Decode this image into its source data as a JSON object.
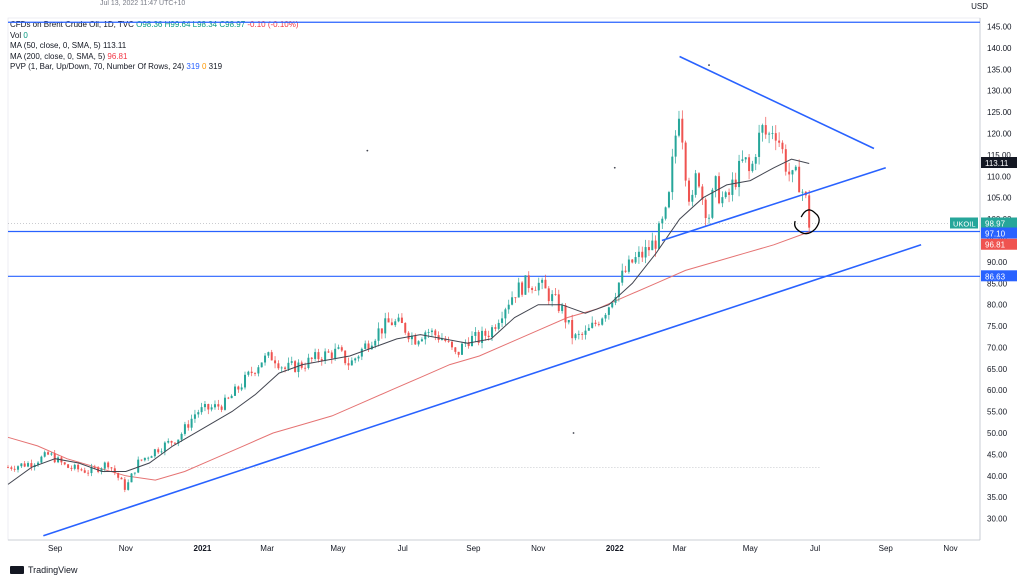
{
  "header": {
    "partial_top": "Jul 13, 2022 11:47 UTC+10",
    "currency": "USD"
  },
  "legend": {
    "symbol": "CFDs on Brent Crude Oil, 1D, TVC",
    "open": "O98.36",
    "high": "H99.64",
    "low": "L98.34",
    "close": "C98.97",
    "change": "-0.10 (-0.10%)",
    "vol_label": "Vol",
    "vol_value": "0",
    "ma50_label": "MA (50, close, 0, SMA, 5)",
    "ma50_value": "113.11",
    "ma200_label": "MA (200, close, 0, SMA, 5)",
    "ma200_value": "96.81",
    "pvp_label": "PVP (1, Bar, Up/Down, 70, Number Of Rows, 24)",
    "pvp_v1": "319",
    "pvp_v2": "0",
    "pvp_v3": "319"
  },
  "brand": {
    "name": "TradingView"
  },
  "colors": {
    "up": "#26a69a",
    "down": "#ef5350",
    "trend": "#2962ff",
    "ma50": "#434651",
    "ma200": "#e57373",
    "annotation": "#000000"
  },
  "chart_data": {
    "type": "candlestick",
    "y_range": [
      25,
      147
    ],
    "y_ticks": [
      30,
      35,
      40,
      45,
      50,
      55,
      60,
      65,
      70,
      75,
      80,
      85,
      90,
      95,
      100,
      105,
      110,
      115,
      120,
      125,
      130,
      135,
      140,
      145
    ],
    "x_labels": [
      {
        "label": "Sep",
        "t": 0.08
      },
      {
        "label": "Nov",
        "t": 0.2
      },
      {
        "label": "2021",
        "t": 0.33
      },
      {
        "label": "Mar",
        "t": 0.44
      },
      {
        "label": "May",
        "t": 0.56
      },
      {
        "label": "Jul",
        "t": 0.67
      },
      {
        "label": "Sep",
        "t": 0.79
      },
      {
        "label": "Nov",
        "t": 0.9
      },
      {
        "label": "2022",
        "t": 1.03
      },
      {
        "label": "Mar",
        "t": 1.14
      },
      {
        "label": "May",
        "t": 1.26
      },
      {
        "label": "Jul",
        "t": 1.37
      },
      {
        "label": "Sep",
        "t": 1.49
      },
      {
        "label": "Nov",
        "t": 1.6
      }
    ],
    "price_path": [
      [
        0.0,
        42
      ],
      [
        0.04,
        43
      ],
      [
        0.07,
        45
      ],
      [
        0.1,
        42
      ],
      [
        0.14,
        41
      ],
      [
        0.17,
        43
      ],
      [
        0.2,
        37
      ],
      [
        0.22,
        43
      ],
      [
        0.25,
        46
      ],
      [
        0.29,
        49
      ],
      [
        0.32,
        55
      ],
      [
        0.35,
        56
      ],
      [
        0.37,
        57
      ],
      [
        0.4,
        62
      ],
      [
        0.43,
        67
      ],
      [
        0.45,
        68
      ],
      [
        0.47,
        65
      ],
      [
        0.5,
        66
      ],
      [
        0.53,
        68
      ],
      [
        0.56,
        69
      ],
      [
        0.58,
        66
      ],
      [
        0.61,
        71
      ],
      [
        0.63,
        74
      ],
      [
        0.65,
        76
      ],
      [
        0.67,
        75
      ],
      [
        0.69,
        72
      ],
      [
        0.71,
        74
      ],
      [
        0.74,
        72
      ],
      [
        0.76,
        68
      ],
      [
        0.78,
        72
      ],
      [
        0.8,
        72
      ],
      [
        0.82,
        74
      ],
      [
        0.84,
        79
      ],
      [
        0.86,
        83
      ],
      [
        0.88,
        85
      ],
      [
        0.9,
        85
      ],
      [
        0.92,
        82
      ],
      [
        0.94,
        79
      ],
      [
        0.96,
        72
      ],
      [
        0.98,
        73
      ],
      [
        1.0,
        76
      ],
      [
        1.02,
        80
      ],
      [
        1.04,
        86
      ],
      [
        1.06,
        90
      ],
      [
        1.08,
        92
      ],
      [
        1.1,
        95
      ],
      [
        1.12,
        102
      ],
      [
        1.13,
        116
      ],
      [
        1.14,
        127
      ],
      [
        1.15,
        112
      ],
      [
        1.16,
        102
      ],
      [
        1.17,
        112
      ],
      [
        1.18,
        104
      ],
      [
        1.19,
        101
      ],
      [
        1.2,
        108
      ],
      [
        1.21,
        105
      ],
      [
        1.22,
        104
      ],
      [
        1.23,
        108
      ],
      [
        1.24,
        111
      ],
      [
        1.25,
        114
      ],
      [
        1.26,
        110
      ],
      [
        1.27,
        117
      ],
      [
        1.28,
        121
      ],
      [
        1.29,
        119
      ],
      [
        1.3,
        122
      ],
      [
        1.31,
        118
      ],
      [
        1.32,
        113
      ],
      [
        1.33,
        109
      ],
      [
        1.34,
        110
      ],
      [
        1.35,
        106
      ],
      [
        1.355,
        104
      ],
      [
        1.36,
        99
      ]
    ],
    "ma50_path": [
      [
        0.0,
        38
      ],
      [
        0.04,
        42
      ],
      [
        0.08,
        44
      ],
      [
        0.12,
        43
      ],
      [
        0.16,
        41
      ],
      [
        0.2,
        41
      ],
      [
        0.24,
        43
      ],
      [
        0.28,
        47
      ],
      [
        0.33,
        51
      ],
      [
        0.38,
        55
      ],
      [
        0.42,
        59
      ],
      [
        0.46,
        64
      ],
      [
        0.5,
        66
      ],
      [
        0.54,
        67
      ],
      [
        0.58,
        68
      ],
      [
        0.62,
        70
      ],
      [
        0.66,
        72
      ],
      [
        0.7,
        73
      ],
      [
        0.74,
        72
      ],
      [
        0.78,
        71
      ],
      [
        0.82,
        72
      ],
      [
        0.86,
        77
      ],
      [
        0.9,
        80
      ],
      [
        0.94,
        80
      ],
      [
        0.98,
        78
      ],
      [
        1.02,
        80
      ],
      [
        1.06,
        85
      ],
      [
        1.1,
        92
      ],
      [
        1.14,
        100
      ],
      [
        1.18,
        105
      ],
      [
        1.22,
        108
      ],
      [
        1.26,
        109
      ],
      [
        1.3,
        112
      ],
      [
        1.33,
        114
      ],
      [
        1.36,
        113
      ]
    ],
    "ma200_path": [
      [
        0.0,
        49
      ],
      [
        0.05,
        47
      ],
      [
        0.1,
        44
      ],
      [
        0.15,
        42
      ],
      [
        0.2,
        40
      ],
      [
        0.25,
        39
      ],
      [
        0.3,
        41
      ],
      [
        0.35,
        44
      ],
      [
        0.4,
        47
      ],
      [
        0.45,
        50
      ],
      [
        0.5,
        52
      ],
      [
        0.55,
        54
      ],
      [
        0.6,
        57
      ],
      [
        0.65,
        60
      ],
      [
        0.7,
        63
      ],
      [
        0.75,
        66
      ],
      [
        0.8,
        68
      ],
      [
        0.85,
        71
      ],
      [
        0.9,
        74
      ],
      [
        0.95,
        77
      ],
      [
        1.0,
        79
      ],
      [
        1.05,
        82
      ],
      [
        1.1,
        85
      ],
      [
        1.15,
        88
      ],
      [
        1.2,
        90
      ],
      [
        1.25,
        92
      ],
      [
        1.3,
        94
      ],
      [
        1.36,
        97
      ]
    ],
    "trendlines": [
      {
        "name": "long-uptrend",
        "from": [
          0.06,
          26
        ],
        "to": [
          1.55,
          94
        ]
      },
      {
        "name": "triangle-top",
        "from": [
          1.14,
          138
        ],
        "to": [
          1.47,
          116.5
        ]
      },
      {
        "name": "triangle-bottom",
        "from": [
          1.11,
          95
        ],
        "to": [
          1.49,
          112
        ]
      }
    ],
    "horizontal_lines": [
      {
        "name": "level-146",
        "value": 146
      },
      {
        "name": "level-97-10",
        "value": 97.1
      },
      {
        "name": "level-86-63",
        "value": 86.63
      }
    ],
    "price_labels": [
      {
        "name": "ma50-label",
        "text": "113.11",
        "value": 113.11,
        "color": "#131722"
      },
      {
        "name": "ukoil-label",
        "text": "98.97",
        "value": 98.97,
        "color": "#26a69a",
        "tag": "UKOIL"
      },
      {
        "name": "level-label",
        "text": "97.10",
        "value": 97.1,
        "color": "#2962ff"
      },
      {
        "name": "ma200-label",
        "text": "96.81",
        "value": 96.81,
        "color": "#ef5350"
      },
      {
        "name": "support-label",
        "text": "86.63",
        "value": 86.63,
        "color": "#2962ff"
      }
    ]
  }
}
